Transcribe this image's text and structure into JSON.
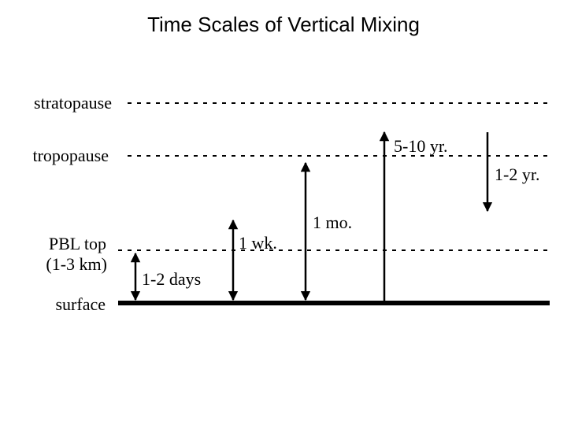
{
  "title": "Time Scales of Vertical Mixing",
  "levels": {
    "stratopause": "stratopause",
    "tropopause": "tropopause",
    "pbl_top_line1": "PBL top",
    "pbl_top_line2": "(1-3 km)",
    "surface": "surface"
  },
  "arrows": {
    "pbl": "1-2 days",
    "week": "1 wk.",
    "month": "1 mo.",
    "strat_up": "5-10 yr.",
    "strat_down": "1-2 yr."
  }
}
